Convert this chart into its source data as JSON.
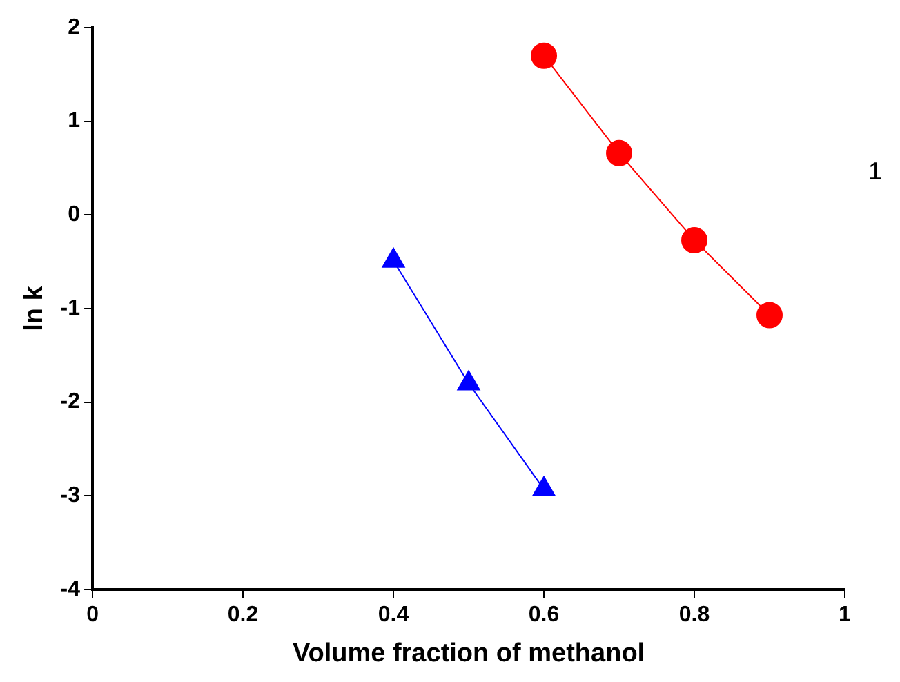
{
  "chart_data": {
    "type": "line",
    "xlabel": "Volume fraction of methanol",
    "ylabel": "ln k",
    "annotations": [
      "1"
    ],
    "xlim": [
      0,
      1
    ],
    "xticks": [
      0,
      0.2,
      0.4,
      0.6,
      0.8,
      1
    ],
    "ylim": [
      -4,
      2
    ],
    "yticks": [
      -4,
      -3,
      -2,
      -1,
      0,
      1,
      2
    ],
    "grid": false,
    "legend": false,
    "series": [
      {
        "color": "#ff0000",
        "marker": "circle",
        "x": [
          0.6,
          0.7,
          0.8,
          0.9
        ],
        "values": [
          1.7,
          0.66,
          -0.27,
          -1.07
        ]
      },
      {
        "color": "#0000ff",
        "marker": "triangle",
        "x": [
          0.4,
          0.5,
          0.6
        ],
        "values": [
          -0.49,
          -1.8,
          -2.93
        ]
      }
    ]
  }
}
